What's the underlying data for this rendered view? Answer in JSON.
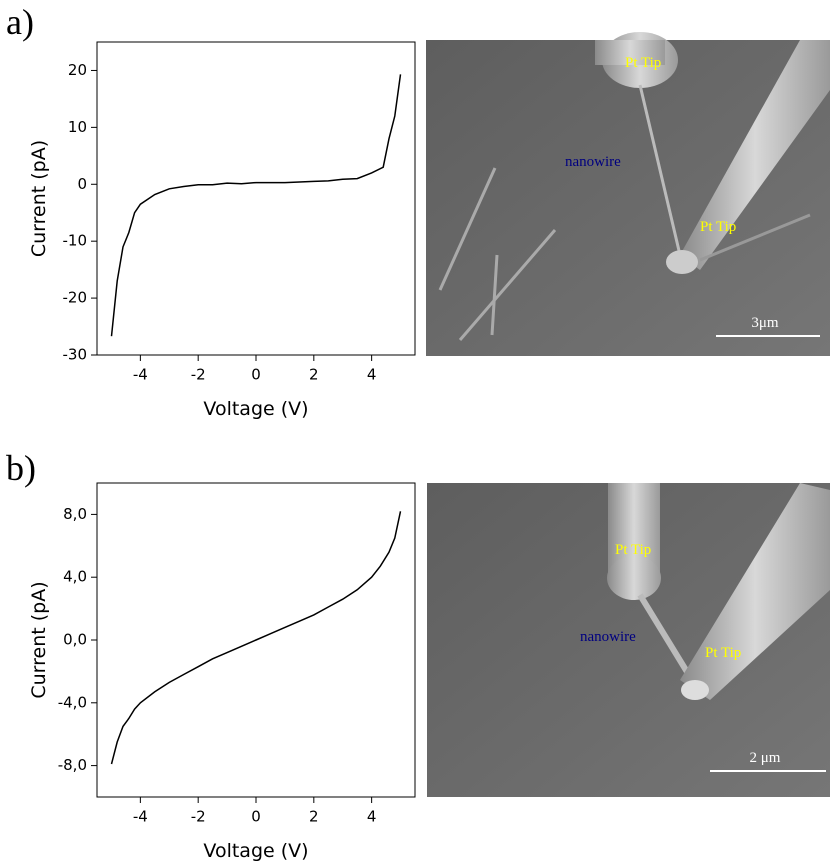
{
  "panels": [
    "a)",
    "b)"
  ],
  "images": [
    {
      "labels": [
        "Pt Tip",
        "nanowire",
        "Pt Tip"
      ],
      "scale_bar": "3μm"
    },
    {
      "labels": [
        "Pt Tip",
        "nanowire",
        "Pt Tip"
      ],
      "scale_bar": "2 μm"
    }
  ],
  "chart_data": [
    {
      "type": "line",
      "x_label": "Voltage (V)",
      "y_label": "Current (pA)",
      "color": "#000000",
      "x": [
        -5,
        -4.8,
        -4.6,
        -4.4,
        -4.2,
        -4,
        -3.5,
        -3,
        -2.5,
        -2,
        -1.5,
        -1,
        -0.5,
        0,
        0.5,
        1,
        1.5,
        2,
        2.5,
        3,
        3.5,
        4,
        4.4,
        4.6,
        4.8,
        5
      ],
      "values": [
        -26.7,
        -17,
        -11,
        -8.5,
        -5,
        -3.5,
        -1.8,
        -0.8,
        -0.4,
        -0.1,
        -0.1,
        0.2,
        0.1,
        0.3,
        0.3,
        0.3,
        0.4,
        0.5,
        0.6,
        0.9,
        1.0,
        2,
        3,
        8,
        12,
        19.3
      ],
      "xlim": [
        -5.5,
        5.5
      ],
      "xticks": [
        -4,
        -2,
        0,
        2,
        4
      ],
      "ylim": [
        -30,
        25
      ],
      "yticks": [
        -30,
        -20,
        -10,
        0,
        10,
        20
      ]
    },
    {
      "type": "line",
      "x_label": "Voltage (V)",
      "y_label": "Current (pA)",
      "color": "#000000",
      "x": [
        -5,
        -4.8,
        -4.6,
        -4.4,
        -4.2,
        -4,
        -3.5,
        -3,
        -2.5,
        -2,
        -1.5,
        -1,
        -0.5,
        0,
        0.5,
        1,
        1.5,
        2,
        2.5,
        3,
        3.5,
        4,
        4.3,
        4.6,
        4.8,
        5
      ],
      "values": [
        -7.9,
        -6.5,
        -5.5,
        -5,
        -4.4,
        -4,
        -3.3,
        -2.7,
        -2.2,
        -1.7,
        -1.2,
        -0.8,
        -0.4,
        0,
        0.4,
        0.8,
        1.2,
        1.6,
        2.1,
        2.6,
        3.2,
        4,
        4.7,
        5.6,
        6.5,
        8.2
      ],
      "xlim": [
        -5.5,
        5.5
      ],
      "xticks": [
        -4,
        -2,
        0,
        2,
        4
      ],
      "ylim": [
        -10,
        10
      ],
      "yticks": [
        {
          "value": -8,
          "label": "-8,0"
        },
        {
          "value": -4,
          "label": "-4,0"
        },
        {
          "value": 0,
          "label": "0,0"
        },
        {
          "value": 4,
          "label": "4,0"
        },
        {
          "value": 8,
          "label": "8,0"
        }
      ]
    }
  ]
}
